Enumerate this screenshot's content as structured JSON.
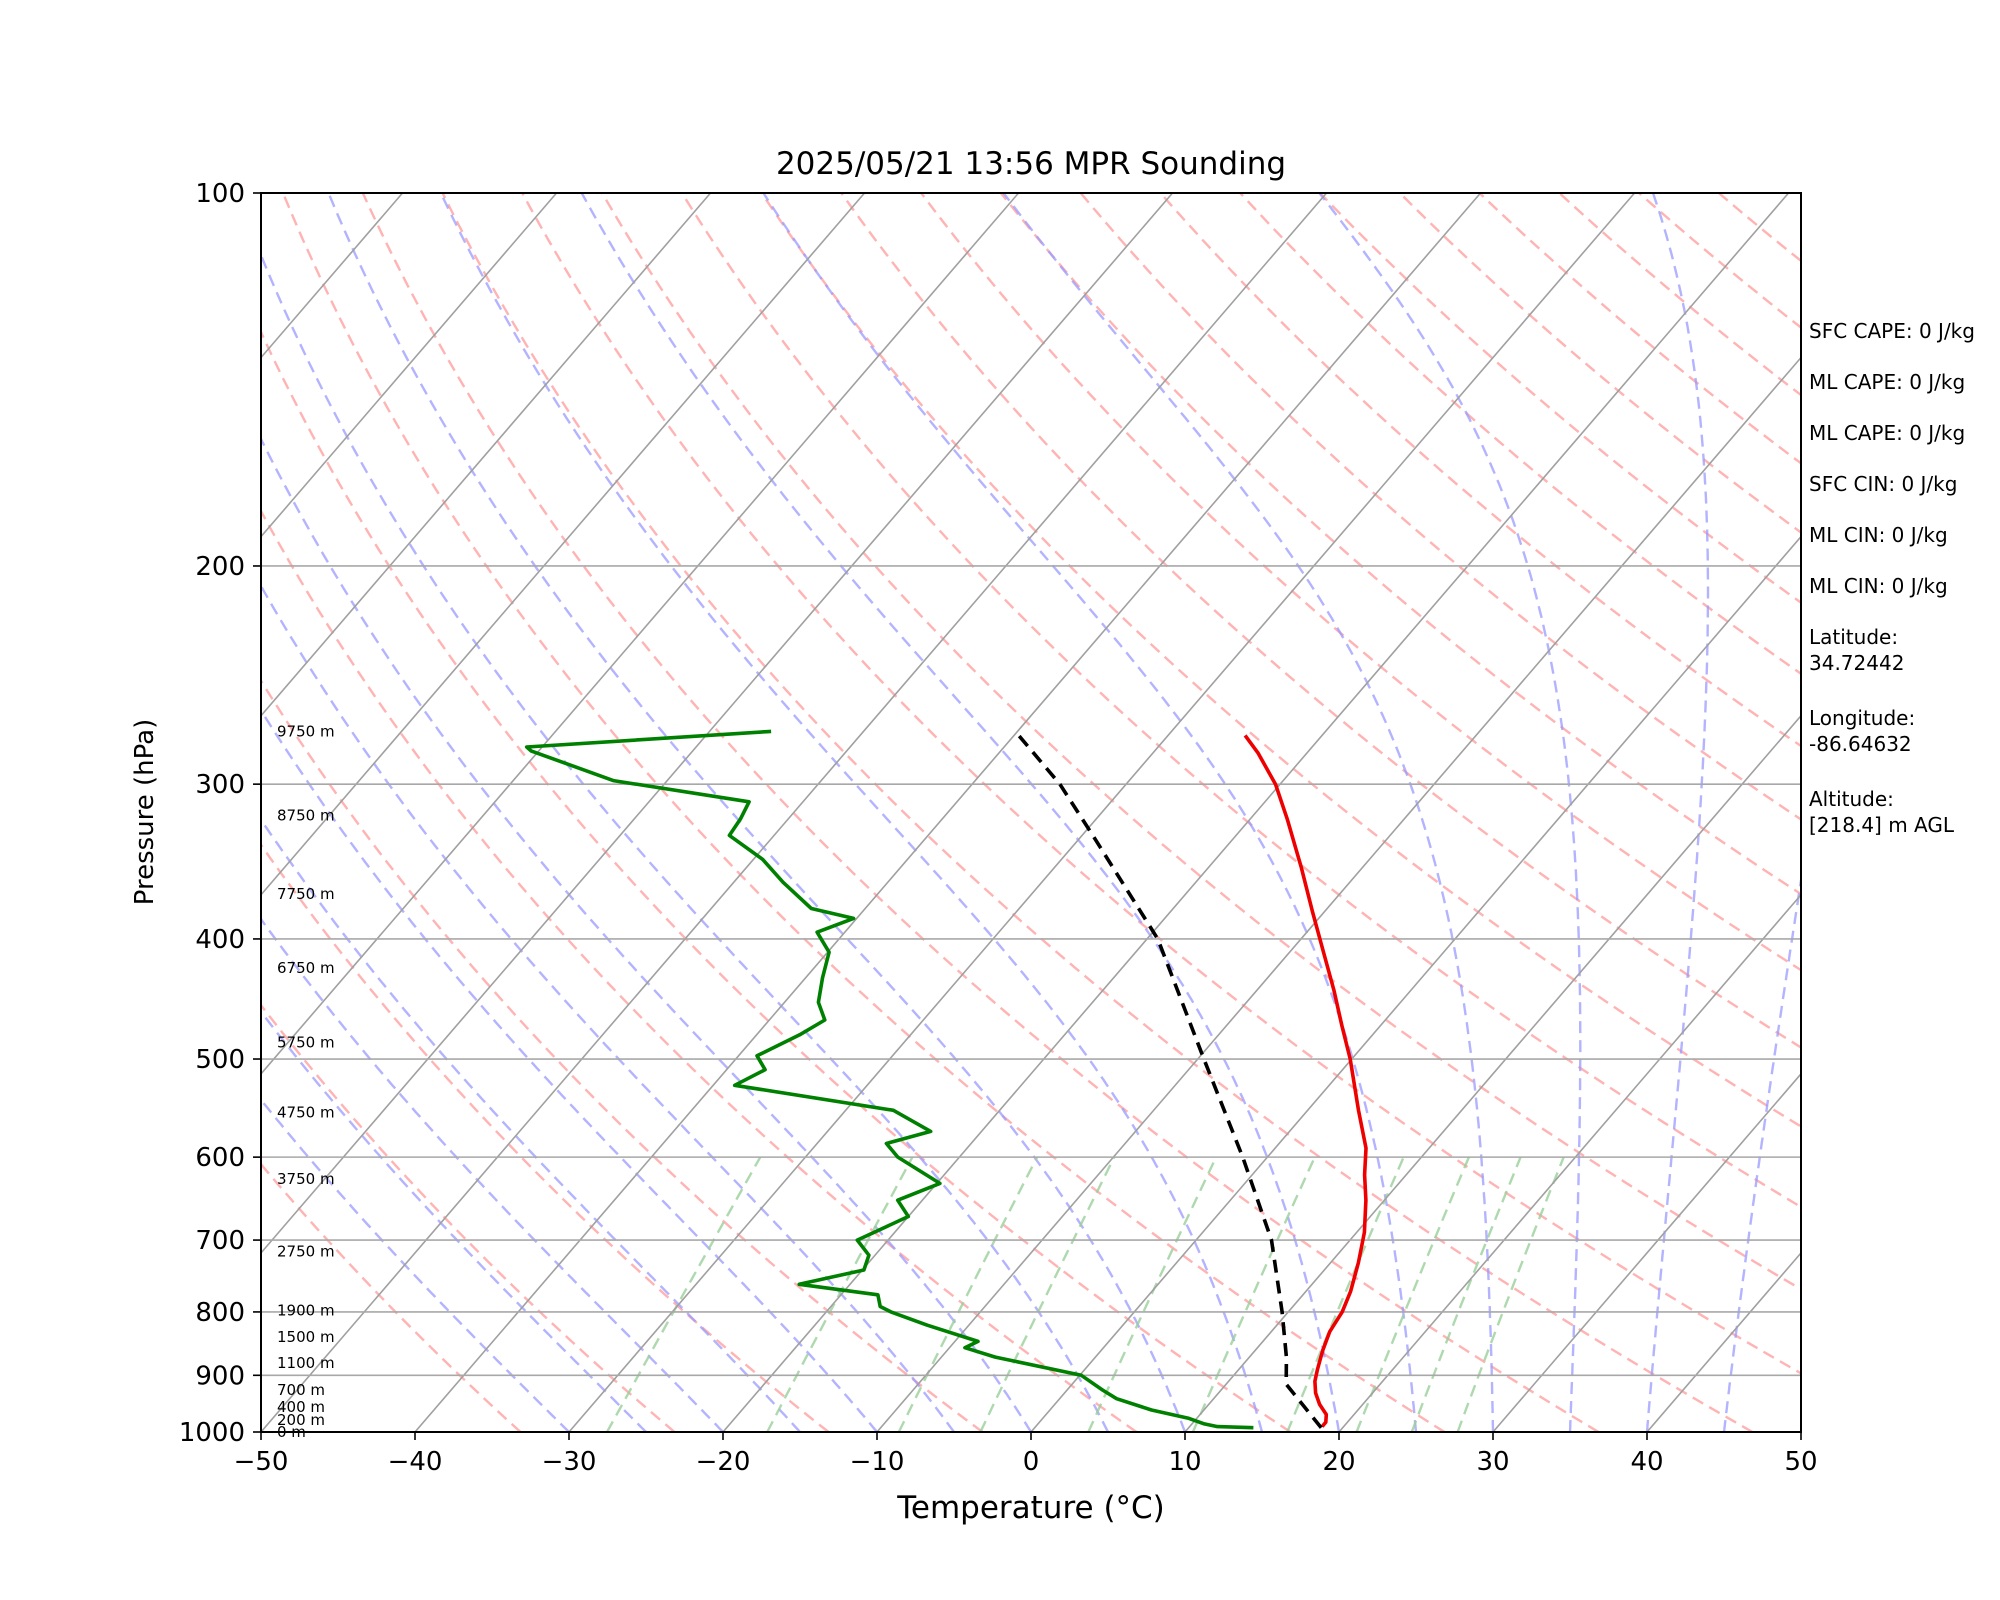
{
  "chart_data": {
    "type": "line",
    "subtype": "skew-T log-p diagram",
    "title": "2025/05/21 13:56 MPR Sounding",
    "xlabel": "Temperature (°C)",
    "ylabel": "Pressure (hPa)",
    "xlim": [
      -50,
      50
    ],
    "ylim": [
      1000,
      100
    ],
    "y_scale": "log",
    "x_ticks": [
      "−50",
      "−40",
      "−30",
      "−20",
      "−10",
      "0",
      "10",
      "20",
      "30",
      "40",
      "50"
    ],
    "y_ticks": [
      "100",
      "200",
      "300",
      "400",
      "500",
      "600",
      "700",
      "800",
      "900",
      "1000"
    ],
    "grid": "isobars at labeled pressures; skewed isotherms every 10 °C",
    "background_lines": {
      "dry_adiabats_color": "#ff9a9a",
      "moist_adiabats_color": "#9a9aff",
      "mixing_ratio_color": "#9ad09a",
      "isotherm_color": "#a0a0a0"
    },
    "series": [
      {
        "role": "temperature",
        "color": "#ee0000",
        "points": [
          {
            "p": 990,
            "t": 18.6
          },
          {
            "p": 982,
            "t": 18.6
          },
          {
            "p": 968,
            "t": 18.2
          },
          {
            "p": 950,
            "t": 17.2
          },
          {
            "p": 930,
            "t": 16.3
          },
          {
            "p": 910,
            "t": 15.6
          },
          {
            "p": 890,
            "t": 15.1
          },
          {
            "p": 860,
            "t": 14.4
          },
          {
            "p": 830,
            "t": 13.8
          },
          {
            "p": 800,
            "t": 13.5
          },
          {
            "p": 770,
            "t": 12.9
          },
          {
            "p": 730,
            "t": 11.8
          },
          {
            "p": 690,
            "t": 10.5
          },
          {
            "p": 650,
            "t": 8.8
          },
          {
            "p": 620,
            "t": 7.3
          },
          {
            "p": 590,
            "t": 5.9
          },
          {
            "p": 550,
            "t": 3.3
          },
          {
            "p": 500,
            "t": -0.1
          },
          {
            "p": 470,
            "t": -2.5
          },
          {
            "p": 440,
            "t": -5.0
          },
          {
            "p": 410,
            "t": -7.8
          },
          {
            "p": 380,
            "t": -10.8
          },
          {
            "p": 350,
            "t": -14.0
          },
          {
            "p": 320,
            "t": -17.6
          },
          {
            "p": 300,
            "t": -20.3
          },
          {
            "p": 283,
            "t": -23.2
          },
          {
            "p": 274,
            "t": -25.0
          }
        ]
      },
      {
        "role": "dewpoint",
        "color": "#008000",
        "points": [
          {
            "p": 992,
            "t": 14.2
          },
          {
            "p": 990,
            "t": 11.8
          },
          {
            "p": 985,
            "t": 10.8
          },
          {
            "p": 975,
            "t": 9.5
          },
          {
            "p": 960,
            "t": 6.6
          },
          {
            "p": 940,
            "t": 3.7
          },
          {
            "p": 925,
            "t": 2.3
          },
          {
            "p": 900,
            "t": 0.1
          },
          {
            "p": 870,
            "t": -6.5
          },
          {
            "p": 855,
            "t": -9.0
          },
          {
            "p": 845,
            "t": -8.5
          },
          {
            "p": 820,
            "t": -12.7
          },
          {
            "p": 800,
            "t": -15.8
          },
          {
            "p": 792,
            "t": -16.8
          },
          {
            "p": 775,
            "t": -17.6
          },
          {
            "p": 760,
            "t": -23.3
          },
          {
            "p": 740,
            "t": -19.9
          },
          {
            "p": 720,
            "t": -20.4
          },
          {
            "p": 700,
            "t": -22.0
          },
          {
            "p": 670,
            "t": -20.0
          },
          {
            "p": 650,
            "t": -21.6
          },
          {
            "p": 630,
            "t": -19.8
          },
          {
            "p": 600,
            "t": -24.0
          },
          {
            "p": 585,
            "t": -25.5
          },
          {
            "p": 572,
            "t": -23.3
          },
          {
            "p": 550,
            "t": -26.9
          },
          {
            "p": 525,
            "t": -38.6
          },
          {
            "p": 510,
            "t": -37.5
          },
          {
            "p": 497,
            "t": -38.8
          },
          {
            "p": 478,
            "t": -37.2
          },
          {
            "p": 465,
            "t": -36.4
          },
          {
            "p": 450,
            "t": -37.8
          },
          {
            "p": 430,
            "t": -38.9
          },
          {
            "p": 410,
            "t": -39.9
          },
          {
            "p": 395,
            "t": -41.8
          },
          {
            "p": 385,
            "t": -40.2
          },
          {
            "p": 378,
            "t": -43.5
          },
          {
            "p": 360,
            "t": -46.8
          },
          {
            "p": 345,
            "t": -49.4
          },
          {
            "p": 330,
            "t": -52.9
          },
          {
            "p": 320,
            "t": -53.1
          },
          {
            "p": 310,
            "t": -53.5
          },
          {
            "p": 298,
            "t": -63.5
          },
          {
            "p": 282,
            "t": -70.5
          },
          {
            "p": 280,
            "t": -71.0
          },
          {
            "p": 272,
            "t": -56.0
          }
        ]
      },
      {
        "role": "parcel profile",
        "color": "#000000",
        "style": "dashed",
        "points": [
          {
            "p": 992,
            "t": 18.6
          },
          {
            "p": 915,
            "t": 13.9
          },
          {
            "p": 870,
            "t": 12.4
          },
          {
            "p": 800,
            "t": 9.6
          },
          {
            "p": 700,
            "t": 4.9
          },
          {
            "p": 600,
            "t": -1.6
          },
          {
            "p": 500,
            "t": -9.6
          },
          {
            "p": 400,
            "t": -19.3
          },
          {
            "p": 330,
            "t": -29.3
          },
          {
            "p": 300,
            "t": -34.3
          },
          {
            "p": 274,
            "t": -39.7
          }
        ]
      }
    ],
    "height_labels": [
      {
        "p": 1000,
        "label": "0 m"
      },
      {
        "p": 978,
        "label": "200 m"
      },
      {
        "p": 955,
        "label": "400 m"
      },
      {
        "p": 925,
        "label": "700 m"
      },
      {
        "p": 880,
        "label": "1100 m"
      },
      {
        "p": 838,
        "label": "1500 m"
      },
      {
        "p": 798,
        "label": "1900 m"
      },
      {
        "p": 715,
        "label": "2750 m"
      },
      {
        "p": 625,
        "label": "3750 m"
      },
      {
        "p": 552,
        "label": "4750 m"
      },
      {
        "p": 485,
        "label": "5750 m"
      },
      {
        "p": 422,
        "label": "6750 m"
      },
      {
        "p": 368,
        "label": "7750 m"
      },
      {
        "p": 318,
        "label": "8750 m"
      },
      {
        "p": 272,
        "label": "9750 m"
      }
    ]
  },
  "info_panel": {
    "sfc_cape": "SFC CAPE: 0 J/kg",
    "ml_cape_1": "ML CAPE: 0 J/kg",
    "ml_cape_2": "ML CAPE: 0 J/kg",
    "sfc_cin": "SFC CIN: 0 J/kg",
    "ml_cin_1": "ML CIN: 0 J/kg",
    "ml_cin_2": "ML CIN: 0 J/kg",
    "latitude_label": "Latitude:",
    "latitude_value": "34.72442",
    "longitude_label": "Longitude:",
    "longitude_value": "-86.64632",
    "altitude_label": "Altitude:",
    "altitude_value": "[218.4] m AGL"
  }
}
